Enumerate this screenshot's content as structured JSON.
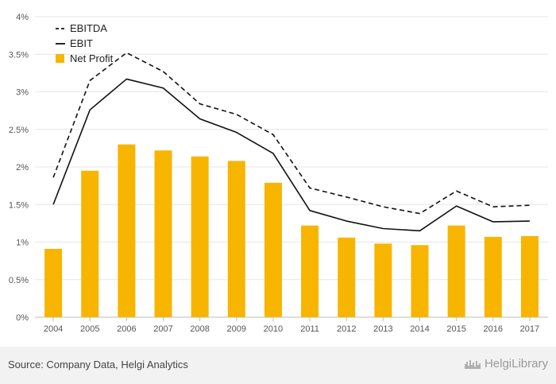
{
  "chart_data": {
    "type": "bar",
    "categories": [
      "2004",
      "2005",
      "2006",
      "2007",
      "2008",
      "2009",
      "2010",
      "2011",
      "2012",
      "2013",
      "2014",
      "2015",
      "2016",
      "2017"
    ],
    "series": [
      {
        "name": "Net Profit",
        "type": "bar",
        "color": "#f7b500",
        "values": [
          0.91,
          1.95,
          2.3,
          2.22,
          2.14,
          2.08,
          1.79,
          1.22,
          1.06,
          0.98,
          0.96,
          1.22,
          1.07,
          1.08
        ]
      },
      {
        "name": "EBITDA",
        "type": "line",
        "style": "dashed",
        "color": "#111111",
        "values": [
          1.86,
          3.15,
          3.52,
          3.27,
          2.84,
          2.7,
          2.43,
          1.72,
          1.6,
          1.47,
          1.38,
          1.68,
          1.47,
          1.49
        ]
      },
      {
        "name": "EBIT",
        "type": "line",
        "style": "solid",
        "color": "#111111",
        "values": [
          1.5,
          2.76,
          3.17,
          3.05,
          2.64,
          2.46,
          2.18,
          1.42,
          1.28,
          1.18,
          1.15,
          1.48,
          1.27,
          1.28
        ]
      }
    ],
    "yticks": [
      "0%",
      "0.5%",
      "1%",
      "1.5%",
      "2%",
      "2.5%",
      "3%",
      "3.5%",
      "4%"
    ],
    "ylim": [
      0,
      4
    ],
    "grid": "horizontal",
    "legend": {
      "placement": "top-left",
      "order": [
        "EBITDA",
        "EBIT",
        "Net Profit"
      ]
    }
  },
  "footer": {
    "source": "Source: Company Data, Helgi Analytics",
    "logo": "HelgiLibrary",
    "logo_icon": "city-skyline-icon"
  }
}
